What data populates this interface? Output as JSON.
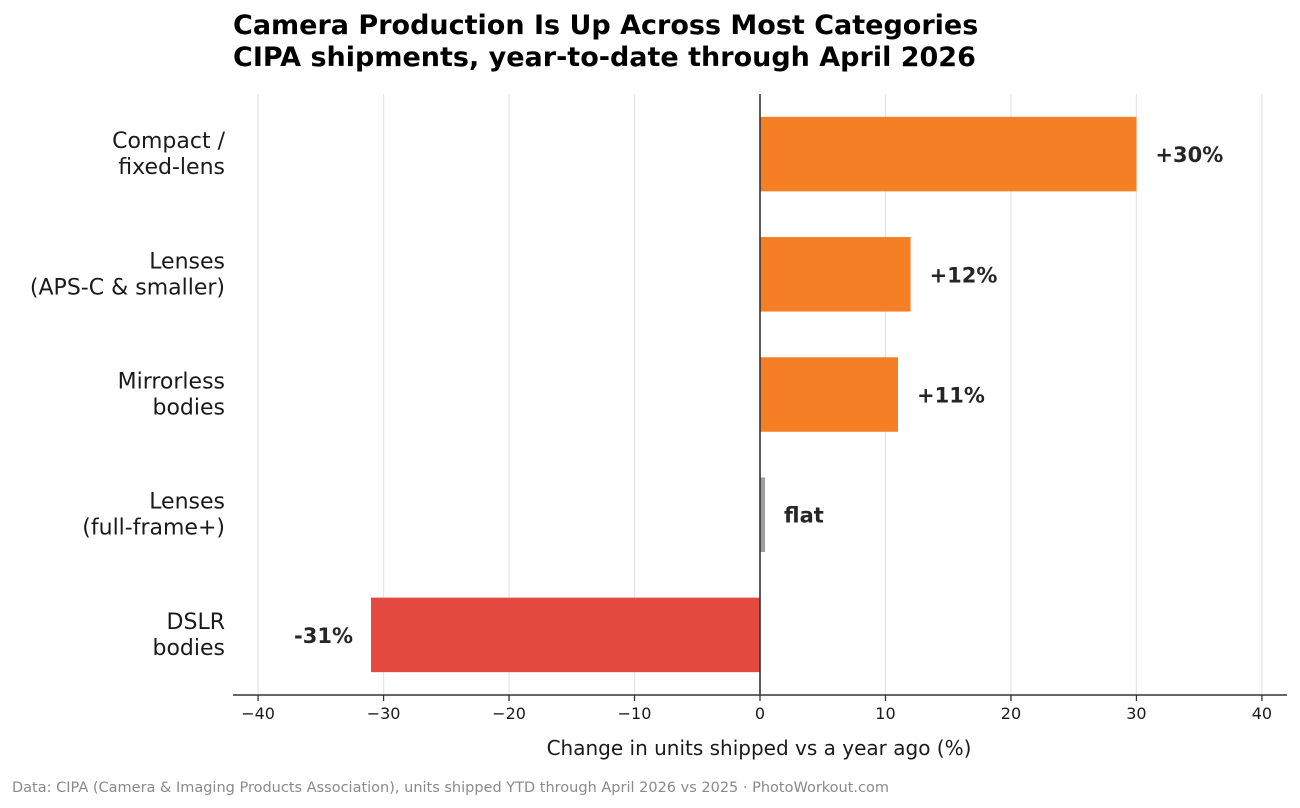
{
  "chart_data": {
    "type": "bar",
    "orientation": "horizontal",
    "title_lines": [
      "Camera Production Is Up Across Most Categories",
      "CIPA shipments, year-to-date through April 2026"
    ],
    "xlabel": "Change in units shipped vs a year ago (%)",
    "xlim": [
      -42,
      42
    ],
    "xticks": [
      -40,
      -30,
      -20,
      -10,
      0,
      10,
      20,
      30,
      40
    ],
    "xtick_labels": [
      "−40",
      "−30",
      "−20",
      "−10",
      "0",
      "10",
      "20",
      "30",
      "40"
    ],
    "grid": "vertical",
    "categories": [
      {
        "lines": [
          "Compact /",
          "fixed-lens"
        ],
        "value": 30,
        "label": "+30%",
        "color": "#f57f25"
      },
      {
        "lines": [
          "Lenses",
          "(APS-C & smaller)"
        ],
        "value": 12,
        "label": "+12%",
        "color": "#f57f25"
      },
      {
        "lines": [
          "Mirrorless",
          "bodies"
        ],
        "value": 11,
        "label": "+11%",
        "color": "#f57f25"
      },
      {
        "lines": [
          "Lenses",
          "(full-frame+)"
        ],
        "value": 0.4,
        "label": "flat",
        "color": "#9e9e9e"
      },
      {
        "lines": [
          "DSLR",
          "bodies"
        ],
        "value": -31,
        "label": "-31%",
        "color": "#e3493f"
      }
    ]
  },
  "source": "Data: CIPA (Camera & Imaging Products Association), units shipped YTD through April 2026 vs 2025  ·  PhotoWorkout.com"
}
